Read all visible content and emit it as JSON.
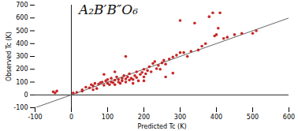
{
  "chart_data": {
    "type": "scatter",
    "title": "A₂B′B″O₆",
    "x_label": "Predicted Tc (K)",
    "y_label": "Observed Tc (K)",
    "x": [
      -50,
      -40,
      -45,
      5,
      15,
      30,
      40,
      50,
      55,
      60,
      65,
      70,
      75,
      80,
      85,
      90,
      95,
      100,
      100,
      105,
      110,
      110,
      115,
      120,
      120,
      125,
      130,
      130,
      135,
      140,
      140,
      145,
      150,
      150,
      155,
      160,
      160,
      165,
      170,
      175,
      180,
      180,
      185,
      190,
      195,
      200,
      200,
      205,
      210,
      215,
      220,
      225,
      230,
      235,
      240,
      245,
      250,
      255,
      260,
      270,
      280,
      290,
      300,
      310,
      320,
      330,
      340,
      350,
      360,
      370,
      380,
      390,
      395,
      400,
      405,
      410,
      420,
      430,
      450,
      470,
      500,
      510,
      260,
      280,
      300,
      200,
      170,
      120,
      90,
      150,
      30,
      60
    ],
    "values": [
      25,
      30,
      15,
      15,
      20,
      40,
      60,
      55,
      80,
      70,
      90,
      50,
      85,
      95,
      100,
      75,
      110,
      90,
      120,
      80,
      100,
      130,
      95,
      115,
      80,
      140,
      100,
      120,
      90,
      130,
      110,
      150,
      100,
      125,
      140,
      115,
      165,
      130,
      120,
      150,
      180,
      135,
      110,
      160,
      175,
      140,
      200,
      165,
      190,
      220,
      180,
      245,
      260,
      205,
      230,
      200,
      250,
      270,
      240,
      280,
      295,
      310,
      330,
      330,
      300,
      340,
      560,
      350,
      380,
      400,
      610,
      640,
      460,
      470,
      520,
      640,
      440,
      450,
      470,
      480,
      480,
      500,
      140,
      170,
      580,
      110,
      90,
      180,
      160,
      300,
      30,
      40
    ],
    "color": "#c62828",
    "diagonal": {
      "x": [
        -100,
        600
      ],
      "y": [
        -100,
        600
      ]
    },
    "xlim": [
      -100,
      600
    ],
    "xticks": [
      -100,
      0,
      100,
      200,
      300,
      400,
      500,
      600
    ],
    "ylim": [
      -100,
      700
    ],
    "yticks": [
      -100,
      0,
      100,
      200,
      300,
      400,
      500,
      600,
      700
    ],
    "grid": false
  }
}
